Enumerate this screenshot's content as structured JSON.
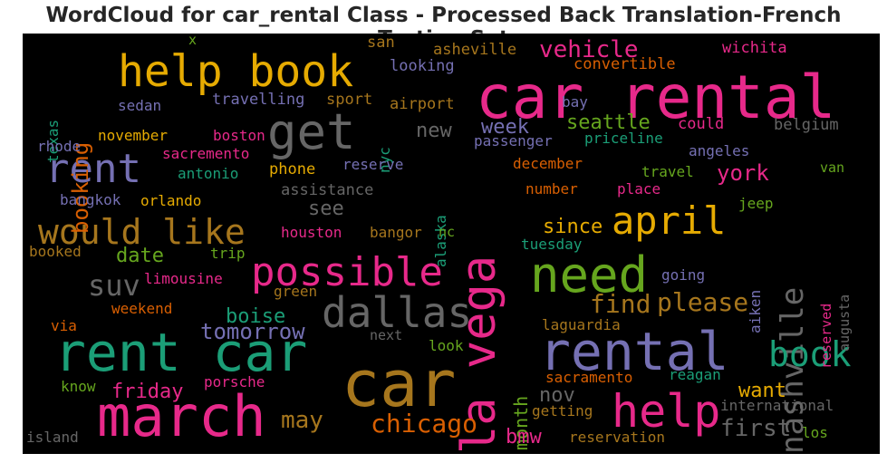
{
  "chart_data": {
    "type": "wordcloud",
    "title": "WordCloud for car_rental Class - Processed Back Translation-French Testing Set",
    "palette": {
      "pink": "#e7298a",
      "green": "#1b9e77",
      "orange": "#d95f02",
      "purple": "#7570b3",
      "lime": "#66a61e",
      "yellow": "#e6ab02",
      "brown": "#a6761d",
      "gray": "#666666"
    },
    "words": [
      {
        "text": "car rental",
        "color": "#e7298a"
      },
      {
        "text": "rent car",
        "color": "#1b9e77"
      },
      {
        "text": "car",
        "color": "#a6761d"
      },
      {
        "text": "march",
        "color": "#e7298a"
      },
      {
        "text": "rental",
        "color": "#7570b3"
      },
      {
        "text": "help book",
        "color": "#e6ab02"
      },
      {
        "text": "need",
        "color": "#66a61e"
      },
      {
        "text": "get",
        "color": "#666666"
      },
      {
        "text": "dallas",
        "color": "#666666"
      },
      {
        "text": "possible",
        "color": "#e7298a"
      },
      {
        "text": "la vega",
        "color": "#e7298a"
      },
      {
        "text": "help",
        "color": "#e7298a"
      },
      {
        "text": "would like",
        "color": "#a6761d"
      },
      {
        "text": "rent",
        "color": "#7570b3"
      },
      {
        "text": "april",
        "color": "#e6ab02"
      },
      {
        "text": "nashville",
        "color": "#666666"
      },
      {
        "text": "book",
        "color": "#1b9e77"
      },
      {
        "text": "chicago",
        "color": "#d95f02"
      },
      {
        "text": "suv",
        "color": "#666666"
      },
      {
        "text": "vehicle",
        "color": "#e7298a"
      },
      {
        "text": "booking",
        "color": "#d95f02"
      },
      {
        "text": "please",
        "color": "#a6761d"
      },
      {
        "text": "find",
        "color": "#a6761d"
      },
      {
        "text": "may",
        "color": "#a6761d"
      },
      {
        "text": "first",
        "color": "#666666"
      },
      {
        "text": "tomorrow",
        "color": "#7570b3"
      },
      {
        "text": "boise",
        "color": "#1b9e77"
      },
      {
        "text": "friday",
        "color": "#e7298a"
      },
      {
        "text": "date",
        "color": "#66a61e"
      },
      {
        "text": "since",
        "color": "#e6ab02"
      },
      {
        "text": "york",
        "color": "#e7298a"
      },
      {
        "text": "seattle",
        "color": "#66a61e"
      },
      {
        "text": "week",
        "color": "#7570b3"
      },
      {
        "text": "want",
        "color": "#e6ab02"
      },
      {
        "text": "month",
        "color": "#66a61e"
      },
      {
        "text": "new",
        "color": "#666666"
      },
      {
        "text": "see",
        "color": "#666666"
      },
      {
        "text": "nov",
        "color": "#666666"
      },
      {
        "text": "bmw",
        "color": "#e7298a"
      },
      {
        "text": "texas",
        "color": "#1b9e77"
      },
      {
        "text": "asheville",
        "color": "#a6761d"
      },
      {
        "text": "convertible",
        "color": "#d95f02"
      },
      {
        "text": "wichita",
        "color": "#e7298a"
      },
      {
        "text": "looking",
        "color": "#7570b3"
      },
      {
        "text": "san",
        "color": "#a6761d"
      },
      {
        "text": "x",
        "color": "#66a61e"
      },
      {
        "text": "travelling",
        "color": "#7570b3"
      },
      {
        "text": "sport",
        "color": "#a6761d"
      },
      {
        "text": "airport",
        "color": "#a6761d"
      },
      {
        "text": "sedan",
        "color": "#7570b3"
      },
      {
        "text": "bay",
        "color": "#7570b3"
      },
      {
        "text": "could",
        "color": "#e7298a"
      },
      {
        "text": "belgium",
        "color": "#666666"
      },
      {
        "text": "rhode",
        "color": "#7570b3"
      },
      {
        "text": "november",
        "color": "#e6ab02"
      },
      {
        "text": "boston",
        "color": "#e7298a"
      },
      {
        "text": "nyc",
        "color": "#1b9e77"
      },
      {
        "text": "passenger",
        "color": "#7570b3"
      },
      {
        "text": "priceline",
        "color": "#1b9e77"
      },
      {
        "text": "sacremento",
        "color": "#e7298a"
      },
      {
        "text": "reserve",
        "color": "#7570b3"
      },
      {
        "text": "angeles",
        "color": "#7570b3"
      },
      {
        "text": "antonio",
        "color": "#1b9e77"
      },
      {
        "text": "phone",
        "color": "#e6ab02"
      },
      {
        "text": "december",
        "color": "#d95f02"
      },
      {
        "text": "travel",
        "color": "#66a61e"
      },
      {
        "text": "van",
        "color": "#66a61e"
      },
      {
        "text": "alaska",
        "color": "#1b9e77"
      },
      {
        "text": "assistance",
        "color": "#666666"
      },
      {
        "text": "number",
        "color": "#d95f02"
      },
      {
        "text": "place",
        "color": "#e7298a"
      },
      {
        "text": "bangkok",
        "color": "#7570b3"
      },
      {
        "text": "orlando",
        "color": "#e6ab02"
      },
      {
        "text": "jeep",
        "color": "#66a61e"
      },
      {
        "text": "aiken",
        "color": "#7570b3"
      },
      {
        "text": "reserved",
        "color": "#e7298a"
      },
      {
        "text": "augusta",
        "color": "#666666"
      },
      {
        "text": "houston",
        "color": "#e7298a"
      },
      {
        "text": "bangor",
        "color": "#a6761d"
      },
      {
        "text": "nc",
        "color": "#66a61e"
      },
      {
        "text": "tuesday",
        "color": "#1b9e77"
      },
      {
        "text": "booked",
        "color": "#a6761d"
      },
      {
        "text": "trip",
        "color": "#66a61e"
      },
      {
        "text": "limousine",
        "color": "#e7298a"
      },
      {
        "text": "going",
        "color": "#7570b3"
      },
      {
        "text": "green",
        "color": "#a6761d"
      },
      {
        "text": "weekend",
        "color": "#d95f02"
      },
      {
        "text": "via",
        "color": "#d95f02"
      },
      {
        "text": "laguardia",
        "color": "#a6761d"
      },
      {
        "text": "next",
        "color": "#666666"
      },
      {
        "text": "look",
        "color": "#66a61e"
      },
      {
        "text": "sacramento",
        "color": "#d95f02"
      },
      {
        "text": "reagan",
        "color": "#1b9e77"
      },
      {
        "text": "know",
        "color": "#66a61e"
      },
      {
        "text": "porsche",
        "color": "#e7298a"
      },
      {
        "text": "international",
        "color": "#666666"
      },
      {
        "text": "getting",
        "color": "#a6761d"
      },
      {
        "text": "island",
        "color": "#666666"
      },
      {
        "text": "reservation",
        "color": "#a6761d"
      },
      {
        "text": "los",
        "color": "#66a61e"
      }
    ]
  }
}
